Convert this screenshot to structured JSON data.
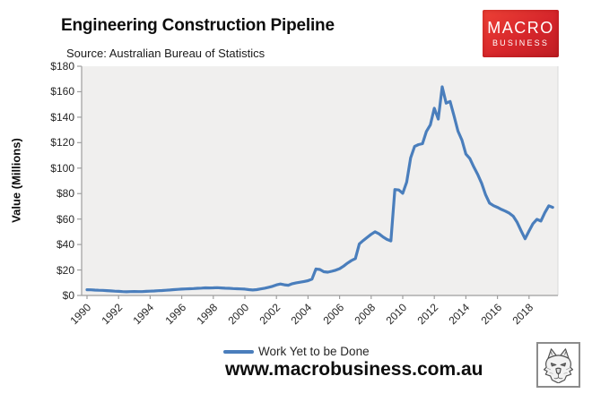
{
  "header": {
    "title": "Engineering Construction Pipeline",
    "source": "Source: Australian Bureau of Statistics"
  },
  "logo": {
    "line1": "MACRO",
    "line2": "BUSINESS",
    "bg_color": "#d6262b"
  },
  "icons": {
    "bottom_right": "wolf-head-icon"
  },
  "legend": {
    "label": "Work Yet to be Done",
    "swatch_color": "#4a7ebc"
  },
  "footer": {
    "url": "www.macrobusiness.com.au"
  },
  "chart_data": {
    "type": "line",
    "title": "Engineering Construction Pipeline",
    "xlabel": "",
    "ylabel": "Value (Millions)",
    "ylim": [
      0,
      180
    ],
    "xlim": [
      1990,
      2020
    ],
    "grid": false,
    "legend_position": "bottom",
    "plot_bg": "#f0efee",
    "axis_color": "#9e9e9e",
    "y_tick_values": [
      0,
      20,
      40,
      60,
      80,
      100,
      120,
      140,
      160,
      180
    ],
    "y_tick_labels": [
      "$0",
      "$20",
      "$40",
      "$60",
      "$80",
      "$100",
      "$120",
      "$140",
      "$160",
      "$180"
    ],
    "x_tick_years": [
      1990,
      1992,
      1994,
      1996,
      1998,
      2000,
      2002,
      2004,
      2006,
      2008,
      2010,
      2012,
      2014,
      2016,
      2018
    ],
    "x_tick_labels": [
      "1990",
      "1992",
      "1994",
      "1996",
      "1998",
      "2000",
      "2002",
      "2004",
      "2006",
      "2008",
      "2010",
      "2012",
      "2014",
      "2016",
      "2018"
    ],
    "series": [
      {
        "name": "Work Yet to be Done",
        "color": "#4a7ebc",
        "x_start": 1990,
        "x_step": 0.25,
        "values": [
          4.5,
          4.4,
          4.2,
          4.1,
          4.0,
          3.8,
          3.6,
          3.4,
          3.2,
          3.0,
          2.9,
          3.0,
          3.1,
          3.0,
          3.0,
          3.2,
          3.4,
          3.5,
          3.7,
          3.9,
          4.1,
          4.3,
          4.6,
          4.8,
          5.0,
          5.1,
          5.3,
          5.4,
          5.6,
          5.8,
          6.0,
          5.9,
          6.0,
          6.1,
          5.9,
          5.7,
          5.6,
          5.4,
          5.3,
          5.1,
          5.0,
          4.6,
          4.3,
          4.6,
          5.1,
          5.7,
          6.4,
          7.2,
          8.3,
          9.0,
          8.4,
          8.0,
          9.2,
          9.9,
          10.4,
          11.0,
          11.6,
          12.8,
          20.8,
          20.4,
          18.6,
          18.3,
          19.0,
          19.8,
          21.0,
          23.0,
          25.4,
          27.4,
          29.0,
          40.5,
          43.2,
          45.6,
          48.0,
          50.0,
          48.4,
          46.0,
          44.0,
          42.8,
          83.2,
          82.8,
          80.2,
          89.0,
          108.0,
          117.0,
          118.5,
          119.2,
          128.8,
          134.0,
          147.0,
          138.5,
          163.8,
          151.0,
          152.4,
          141.0,
          129.0,
          122.0,
          111.0,
          107.5,
          101.0,
          95.0,
          88.0,
          79.0,
          72.5,
          70.5,
          69.2,
          67.6,
          66.2,
          64.6,
          62.2,
          57.4,
          50.8,
          44.5,
          50.6,
          56.4,
          59.8,
          58.4,
          65.0,
          70.4,
          69.2
        ]
      }
    ]
  }
}
